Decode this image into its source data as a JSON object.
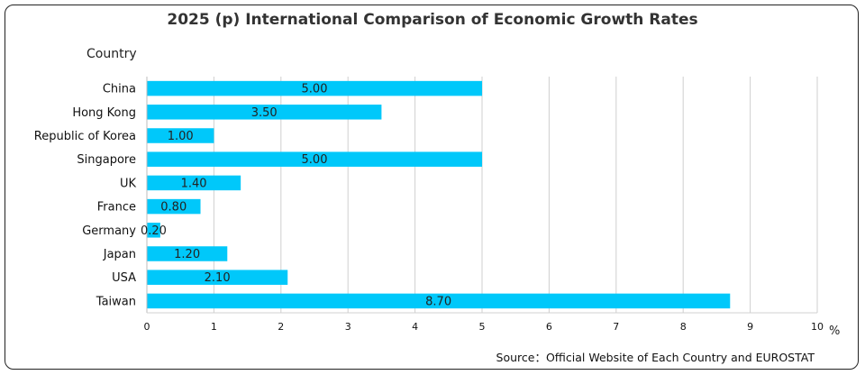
{
  "chart_data": {
    "type": "bar",
    "orientation": "horizontal",
    "title": "2025 (p) International Comparison of Economic Growth Rates",
    "ylabel": "Country",
    "xlabel": "%",
    "categories": [
      "China",
      "Hong Kong",
      "Republic of Korea",
      "Singapore",
      "UK",
      "France",
      "Germany",
      "Japan",
      "USA",
      "Taiwan"
    ],
    "values": [
      5.0,
      3.5,
      1.0,
      5.0,
      1.4,
      0.8,
      0.2,
      1.2,
      2.1,
      8.7
    ],
    "value_labels": [
      "5.00",
      "3.50",
      "1.00",
      "5.00",
      "1.40",
      "0.80",
      "0.20",
      "1.20",
      "2.10",
      "8.70"
    ],
    "xlim": [
      0,
      10
    ],
    "xticks": [
      "0",
      "1",
      "2",
      "3",
      "4",
      "5",
      "6",
      "7",
      "8",
      "9",
      "10"
    ],
    "grid": "vertical",
    "bar_color": "#00C8FA"
  },
  "source": "Source：Official Website of Each Country and EUROSTAT"
}
